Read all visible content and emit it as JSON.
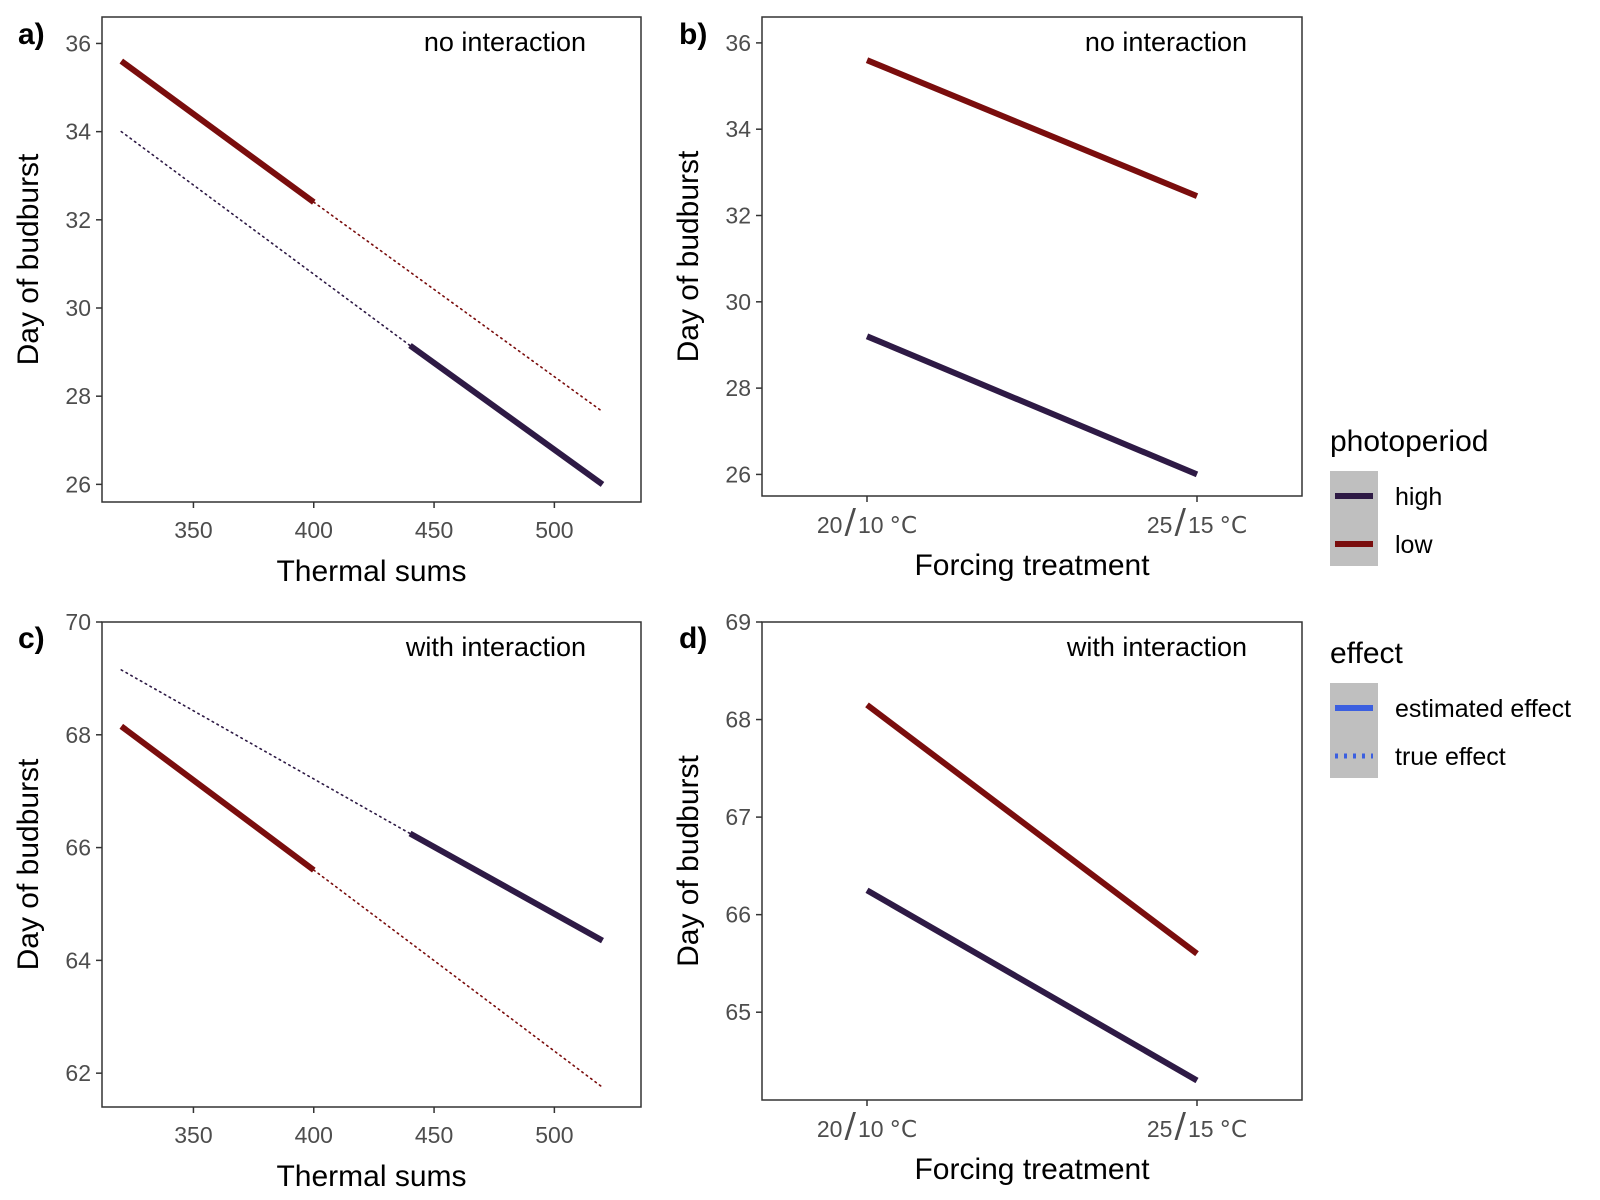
{
  "chart_data": [
    {
      "panel": "a)",
      "type": "line",
      "annotation": "no interaction",
      "xlabel": "Thermal sums",
      "ylabel": "Day of budburst",
      "xlim": [
        312,
        536
      ],
      "ylim": [
        25.6,
        36.6
      ],
      "xticks": [
        350,
        400,
        450,
        500
      ],
      "yticks": [
        26,
        28,
        30,
        32,
        34,
        36
      ],
      "grid": false,
      "series": [
        {
          "photoperiod": "low",
          "effect": "estimated effect",
          "color": "#7a0d0d",
          "x": [
            320,
            400
          ],
          "y": [
            35.6,
            32.4
          ]
        },
        {
          "photoperiod": "high",
          "effect": "estimated effect",
          "color": "#2e1a45",
          "x": [
            440,
            520
          ],
          "y": [
            29.15,
            26.0
          ]
        },
        {
          "photoperiod": "high",
          "effect": "true effect",
          "color": "#2e1a45",
          "x": [
            320,
            440
          ],
          "y": [
            34.0,
            29.15
          ]
        },
        {
          "photoperiod": "low",
          "effect": "true effect",
          "color": "#7a0d0d",
          "x": [
            400,
            520
          ],
          "y": [
            32.4,
            27.65
          ]
        }
      ]
    },
    {
      "panel": "b)",
      "type": "line",
      "annotation": "no interaction",
      "xlabel": "Forcing treatment",
      "ylabel": "Day of budburst",
      "categories": [
        {
          "main": "20",
          "sep": "/",
          "rest": "10",
          "unit": "°C"
        },
        {
          "main": "25",
          "sep": "/",
          "rest": "15",
          "unit": "°C"
        }
      ],
      "ylim": [
        25.5,
        36.6
      ],
      "yticks": [
        26,
        28,
        30,
        32,
        34,
        36
      ],
      "grid": false,
      "series": [
        {
          "photoperiod": "low",
          "effect": "estimated effect",
          "color": "#7a0d0d",
          "values": [
            35.6,
            32.45
          ]
        },
        {
          "photoperiod": "high",
          "effect": "estimated effect",
          "color": "#2e1a45",
          "values": [
            29.2,
            26.0
          ]
        }
      ]
    },
    {
      "panel": "c)",
      "type": "line",
      "annotation": "with interaction",
      "xlabel": "Thermal sums",
      "ylabel": "Day of budburst",
      "xlim": [
        312,
        536
      ],
      "ylim": [
        61.4,
        70.0
      ],
      "xticks": [
        350,
        400,
        450,
        500
      ],
      "yticks": [
        62,
        64,
        66,
        68,
        70
      ],
      "grid": false,
      "series": [
        {
          "photoperiod": "low",
          "effect": "estimated effect",
          "color": "#7a0d0d",
          "x": [
            320,
            400
          ],
          "y": [
            68.15,
            65.6
          ]
        },
        {
          "photoperiod": "high",
          "effect": "estimated effect",
          "color": "#2e1a45",
          "x": [
            440,
            520
          ],
          "y": [
            66.25,
            64.35
          ]
        },
        {
          "photoperiod": "high",
          "effect": "true effect",
          "color": "#2e1a45",
          "x": [
            320,
            440
          ],
          "y": [
            69.15,
            66.25
          ]
        },
        {
          "photoperiod": "low",
          "effect": "true effect",
          "color": "#7a0d0d",
          "x": [
            400,
            520
          ],
          "y": [
            65.6,
            61.75
          ]
        }
      ]
    },
    {
      "panel": "d)",
      "type": "line",
      "annotation": "with interaction",
      "xlabel": "Forcing treatment",
      "ylabel": "Day of budburst",
      "categories": [
        {
          "main": "20",
          "sep": "/",
          "rest": "10",
          "unit": "°C"
        },
        {
          "main": "25",
          "sep": "/",
          "rest": "15",
          "unit": "°C"
        }
      ],
      "ylim": [
        64.1,
        69.0
      ],
      "yticks": [
        65,
        66,
        67,
        68,
        69
      ],
      "grid": false,
      "series": [
        {
          "photoperiod": "low",
          "effect": "estimated effect",
          "color": "#7a0d0d",
          "values": [
            68.15,
            65.6
          ]
        },
        {
          "photoperiod": "high",
          "effect": "estimated effect",
          "color": "#2e1a45",
          "values": [
            66.25,
            64.3
          ]
        }
      ]
    }
  ],
  "legend": {
    "placement": "right",
    "photoperiod": {
      "title": "photoperiod",
      "items": [
        {
          "label": "high",
          "color": "#2e1a45"
        },
        {
          "label": "low",
          "color": "#7a0d0d"
        }
      ]
    },
    "effect": {
      "title": "effect",
      "items": [
        {
          "label": "estimated effect",
          "color": "#3b5fe0",
          "style": "solid"
        },
        {
          "label": "true effect",
          "color": "#3b5fe0",
          "style": "dotted"
        }
      ]
    }
  },
  "colors": {
    "panel_border": "#333333",
    "legend_key_bg": "#bfbfbf"
  }
}
